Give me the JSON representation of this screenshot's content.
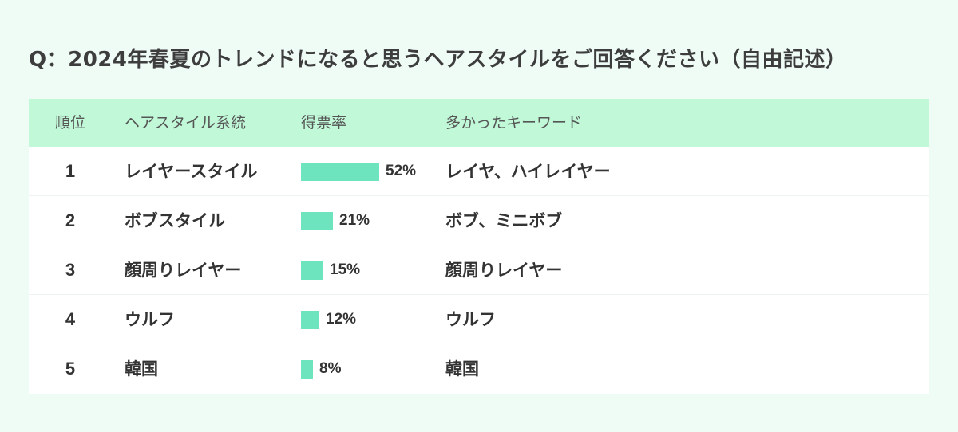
{
  "title": "Q：2024年春夏のトレンドになると思うヘアスタイルをご回答ください（自由記述）",
  "table": {
    "headers": {
      "rank": "順位",
      "style": "ヘアスタイル系統",
      "share": "得票率",
      "keywords": "多かったキーワード"
    }
  },
  "chart_data": {
    "type": "table",
    "title": "Q：2024年春夏のトレンドになると思うヘアスタイルをご回答ください（自由記述）",
    "columns": [
      "順位",
      "ヘアスタイル系統",
      "得票率",
      "多かったキーワード"
    ],
    "bar_color": "#6de4bd",
    "header_color": "#c0f8d8",
    "rows": [
      {
        "rank": "1",
        "style": "レイヤースタイル",
        "value": 52,
        "label": "52%",
        "keywords": "レイヤ、ハイレイヤー"
      },
      {
        "rank": "2",
        "style": "ボブスタイル",
        "value": 21,
        "label": "21%",
        "keywords": "ボブ、ミニボブ"
      },
      {
        "rank": "3",
        "style": "顔周りレイヤー",
        "value": 15,
        "label": "15%",
        "keywords": "顔周りレイヤー"
      },
      {
        "rank": "4",
        "style": "ウルフ",
        "value": 12,
        "label": "12%",
        "keywords": "ウルフ"
      },
      {
        "rank": "5",
        "style": "韓国",
        "value": 8,
        "label": "8%",
        "keywords": "韓国"
      }
    ]
  }
}
